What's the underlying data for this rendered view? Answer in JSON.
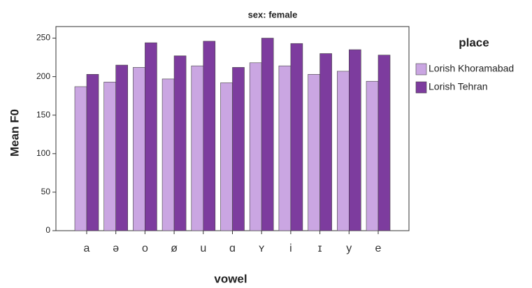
{
  "chart_data": {
    "type": "bar",
    "title": "sex: female",
    "x_label": "vowel",
    "y_label": "Mean F0",
    "legend_title": "place",
    "categories": [
      "a",
      "ə",
      "o",
      "ø",
      "u",
      "ɑ",
      "ʏ",
      "i",
      "ɪ",
      "y",
      "e"
    ],
    "series": [
      {
        "name": "Lorish Khoramabad",
        "color": "#caa6e2",
        "values": [
          187,
          193,
          212,
          197,
          214,
          192,
          218,
          214,
          203,
          207,
          194
        ]
      },
      {
        "name": "Lorish Tehran",
        "color": "#7d3c9e",
        "values": [
          203,
          215,
          244,
          227,
          246,
          212,
          250,
          243,
          230,
          235,
          228
        ]
      }
    ],
    "ylim": [
      0,
      265
    ],
    "yticks": [
      0,
      50,
      100,
      150,
      200,
      250
    ],
    "grid": false,
    "legend": "right"
  }
}
